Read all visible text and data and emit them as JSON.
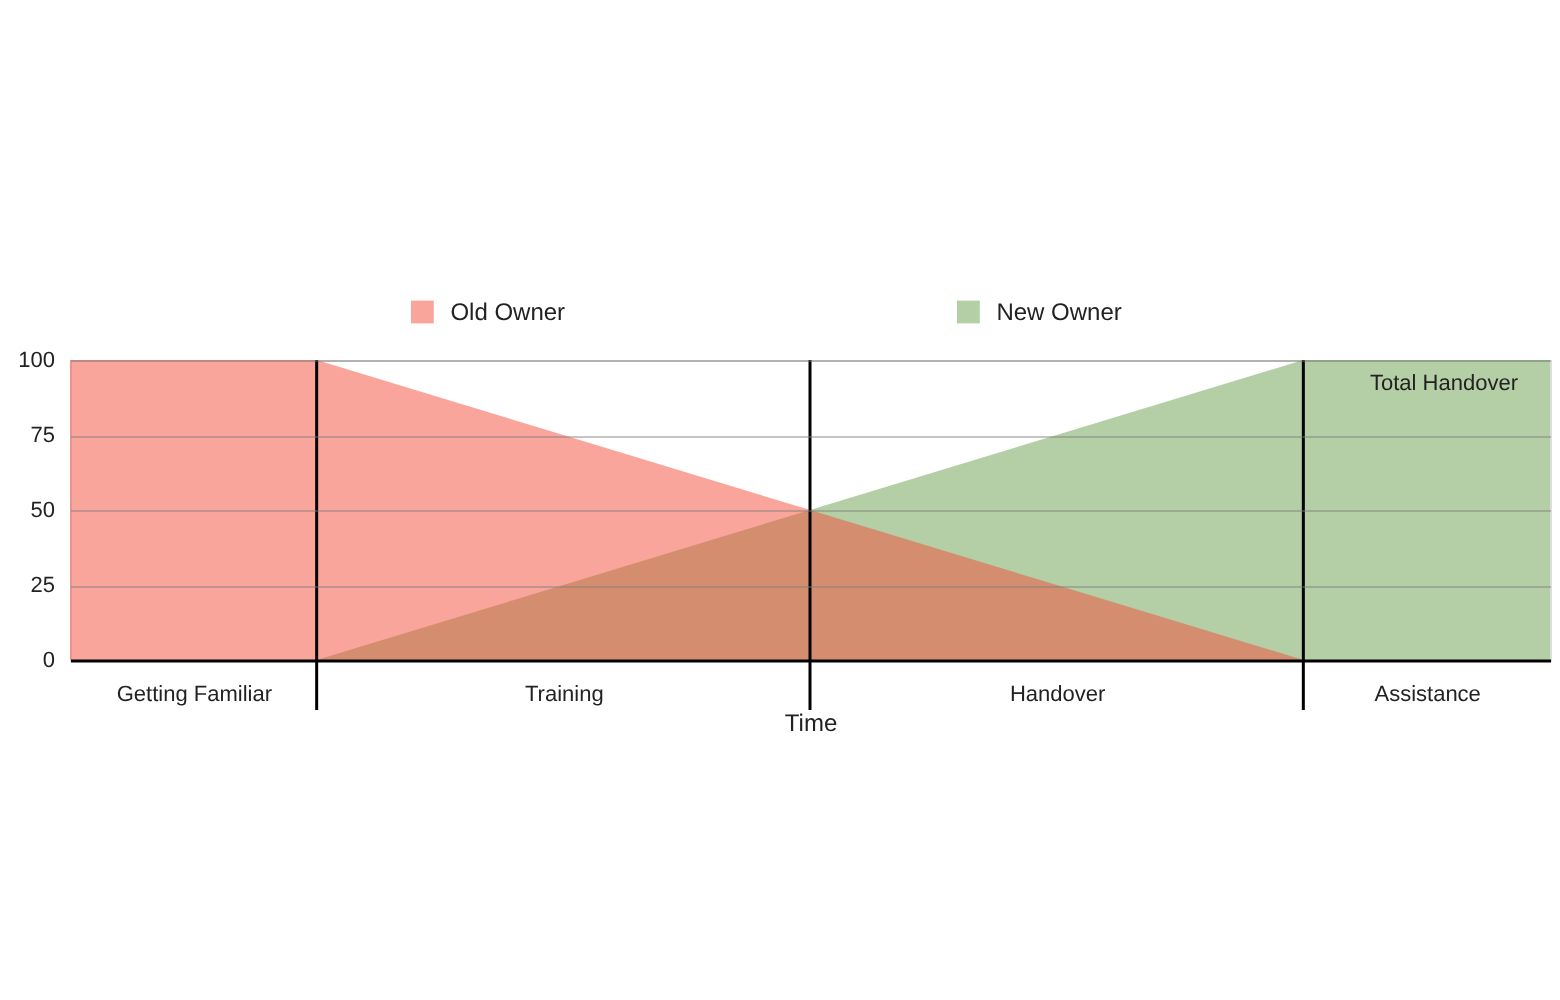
{
  "chart_data": {
    "type": "area",
    "xlabel": "Time",
    "categories": [
      null,
      "Getting Familiar",
      null,
      null,
      "Training",
      null,
      null,
      null,
      "Handover",
      null,
      null,
      "Assistance",
      null
    ],
    "ylim": [
      0,
      100
    ],
    "yticks": [
      0,
      25,
      50,
      75,
      100
    ],
    "series": [
      {
        "name": "Old Owner",
        "color": "#f54b37",
        "values": [
          100,
          100,
          100,
          87.5,
          75,
          62.5,
          50,
          37.5,
          25,
          12.5,
          0,
          null,
          null
        ]
      },
      {
        "name": "New Owner",
        "color": "#699d4d",
        "values": [
          null,
          null,
          0,
          12.5,
          25,
          37.5,
          50,
          62.5,
          75,
          87.5,
          100,
          100,
          100
        ]
      }
    ],
    "annotations": [
      "Total Handover"
    ],
    "grid": true,
    "legend": "top"
  }
}
